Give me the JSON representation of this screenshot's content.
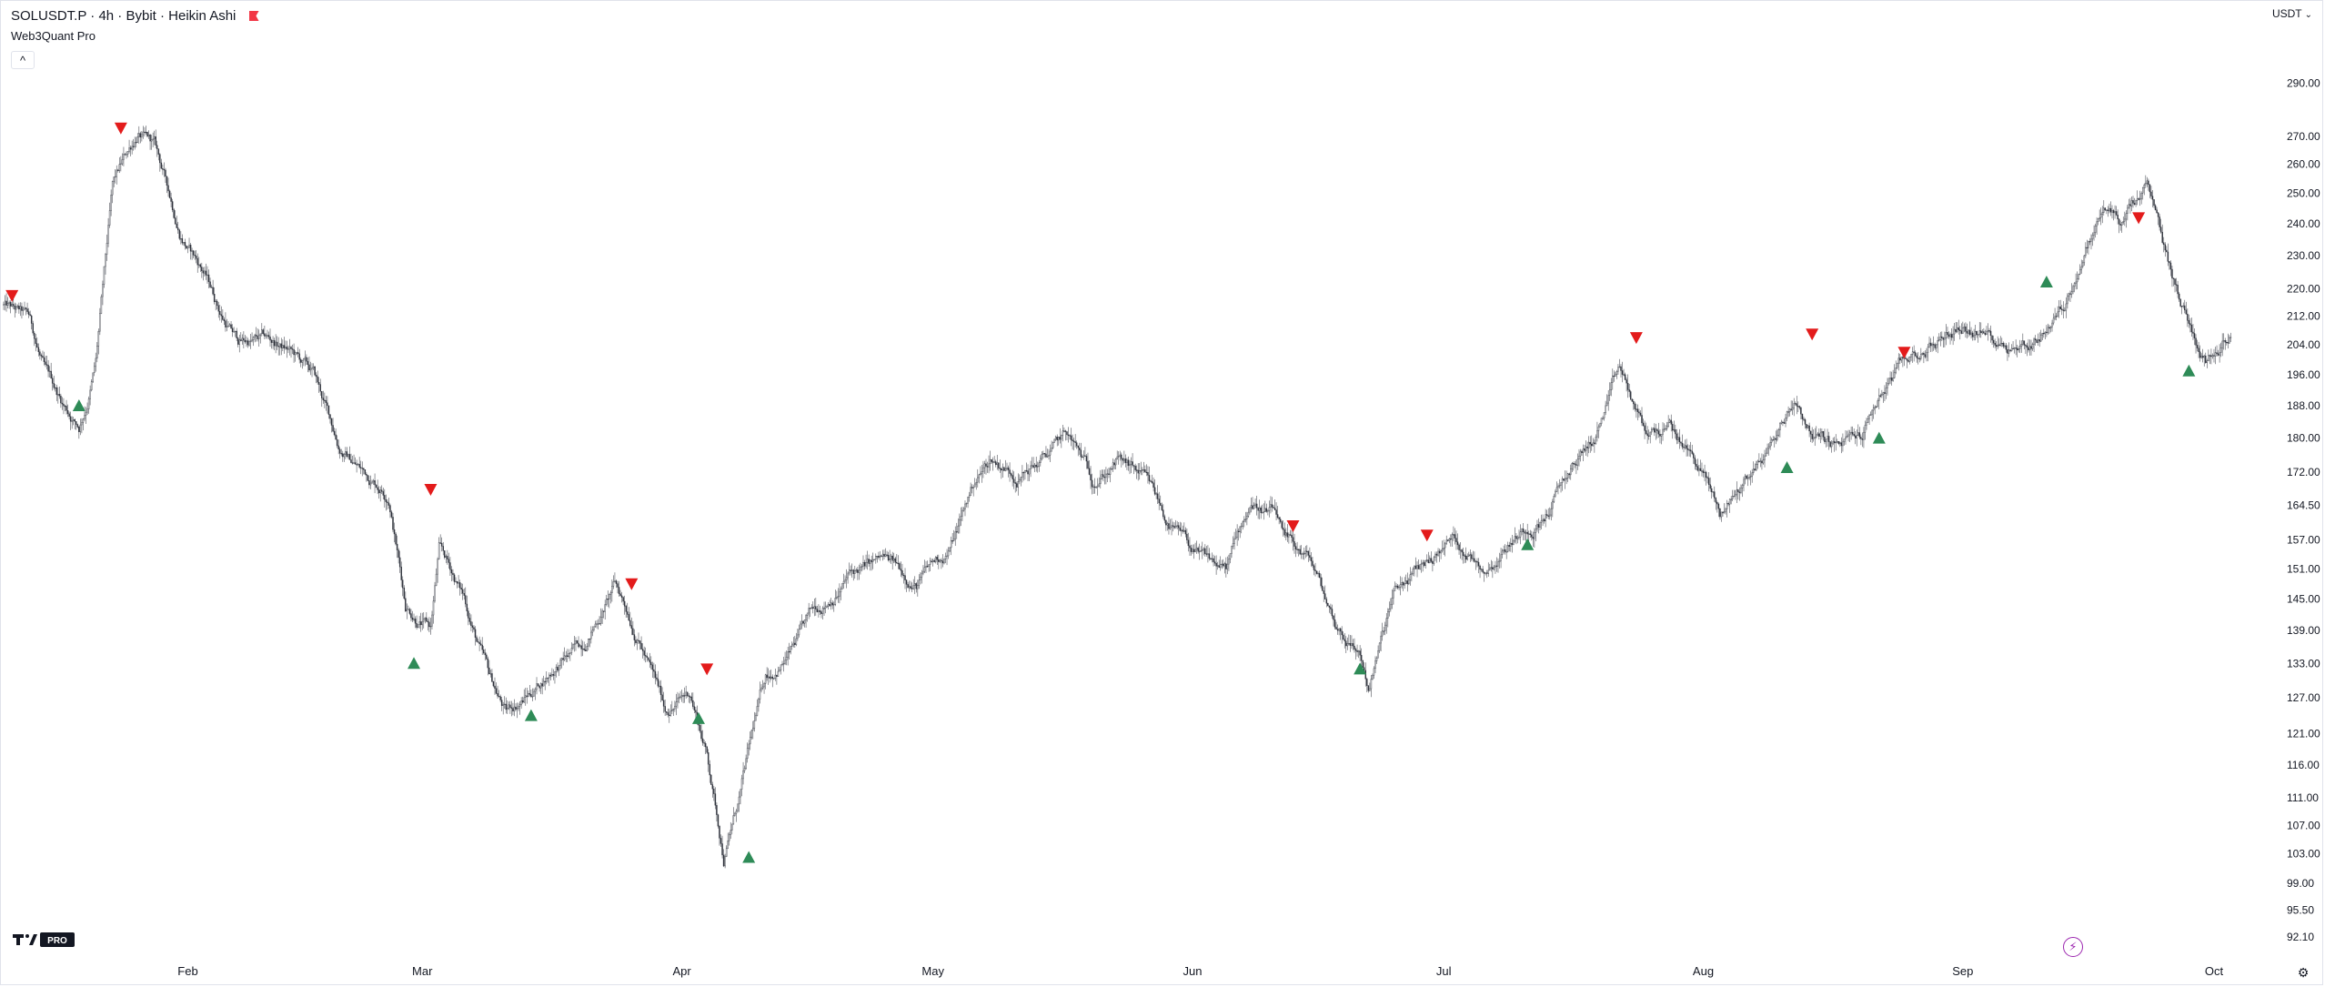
{
  "header": {
    "symbol": "SOLUSDT.P",
    "interval": "4h",
    "exchange": "Bybit",
    "chart_style": "Heikin Ashi",
    "separator": "·",
    "indicator": "Web3Quant Pro",
    "collapse_glyph": "^",
    "currency": "USDT",
    "currency_chevron": "⌄",
    "bolt_glyph": "⚡",
    "gear_glyph": "⚙"
  },
  "colors": {
    "candles": "#131722",
    "buy_signal": "#2e8b57",
    "sell_signal": "#e31b1b",
    "axis_text": "#131722",
    "border": "#e0e3eb",
    "accent_bolt": "#9c27b0"
  },
  "chart_data": {
    "type": "line",
    "scale": "log",
    "grid": false,
    "title": "",
    "xlabel": "",
    "ylabel": "",
    "x_range": [
      "2025-01-10",
      "2025-10-06"
    ],
    "y_range": [
      92.1,
      305
    ],
    "x_ticks": [
      {
        "date": "2025-02-01",
        "label": "Feb"
      },
      {
        "date": "2025-03-01",
        "label": "Mar"
      },
      {
        "date": "2025-04-01",
        "label": "Apr"
      },
      {
        "date": "2025-05-01",
        "label": "May"
      },
      {
        "date": "2025-06-01",
        "label": "Jun"
      },
      {
        "date": "2025-07-01",
        "label": "Jul"
      },
      {
        "date": "2025-08-01",
        "label": "Aug"
      },
      {
        "date": "2025-09-01",
        "label": "Sep"
      },
      {
        "date": "2025-10-01",
        "label": "Oct"
      }
    ],
    "y_ticks": [
      {
        "value": 290,
        "label": "290.00"
      },
      {
        "value": 270,
        "label": "270.00"
      },
      {
        "value": 260,
        "label": "260.00"
      },
      {
        "value": 250,
        "label": "250.00"
      },
      {
        "value": 240,
        "label": "240.00"
      },
      {
        "value": 230,
        "label": "230.00"
      },
      {
        "value": 220,
        "label": "220.00"
      },
      {
        "value": 212,
        "label": "212.00"
      },
      {
        "value": 204,
        "label": "204.00"
      },
      {
        "value": 196,
        "label": "196.00"
      },
      {
        "value": 188,
        "label": "188.00"
      },
      {
        "value": 180,
        "label": "180.00"
      },
      {
        "value": 172,
        "label": "172.00"
      },
      {
        "value": 164.5,
        "label": "164.50"
      },
      {
        "value": 157,
        "label": "157.00"
      },
      {
        "value": 151,
        "label": "151.00"
      },
      {
        "value": 145,
        "label": "145.00"
      },
      {
        "value": 139,
        "label": "139.00"
      },
      {
        "value": 133,
        "label": "133.00"
      },
      {
        "value": 127,
        "label": "127.00"
      },
      {
        "value": 121,
        "label": "121.00"
      },
      {
        "value": 116,
        "label": "116.00"
      },
      {
        "value": 111,
        "label": "111.00"
      },
      {
        "value": 107,
        "label": "107.00"
      },
      {
        "value": 103,
        "label": "103.00"
      },
      {
        "value": 99,
        "label": "99.00"
      },
      {
        "value": 95.5,
        "label": "95.50"
      },
      {
        "value": 92.1,
        "label": "92.10"
      }
    ],
    "series": [
      {
        "name": "",
        "x": [
          "2025-01-10",
          "2025-01-13",
          "2025-01-15",
          "2025-01-17",
          "2025-01-19",
          "2025-01-20",
          "2025-01-21",
          "2025-01-23",
          "2025-01-26",
          "2025-01-28",
          "2025-01-31",
          "2025-02-03",
          "2025-02-05",
          "2025-02-07",
          "2025-02-10",
          "2025-02-13",
          "2025-02-16",
          "2025-02-19",
          "2025-02-22",
          "2025-02-25",
          "2025-02-27",
          "2025-03-02",
          "2025-03-03",
          "2025-03-06",
          "2025-03-09",
          "2025-03-11",
          "2025-03-14",
          "2025-03-17",
          "2025-03-20",
          "2025-03-24",
          "2025-03-27",
          "2025-03-30",
          "2025-04-02",
          "2025-04-04",
          "2025-04-06",
          "2025-04-08",
          "2025-04-09",
          "2025-04-11",
          "2025-04-14",
          "2025-04-17",
          "2025-04-21",
          "2025-04-25",
          "2025-04-29",
          "2025-05-03",
          "2025-05-06",
          "2025-05-08",
          "2025-05-11",
          "2025-05-14",
          "2025-05-17",
          "2025-05-20",
          "2025-05-23",
          "2025-05-26",
          "2025-05-29",
          "2025-06-02",
          "2025-06-05",
          "2025-06-08",
          "2025-06-11",
          "2025-06-12",
          "2025-06-15",
          "2025-06-18",
          "2025-06-21",
          "2025-06-22",
          "2025-06-25",
          "2025-06-29",
          "2025-07-02",
          "2025-07-06",
          "2025-07-09",
          "2025-07-13",
          "2025-07-16",
          "2025-07-19",
          "2025-07-22",
          "2025-07-25",
          "2025-07-28",
          "2025-08-01",
          "2025-08-03",
          "2025-08-06",
          "2025-08-09",
          "2025-08-12",
          "2025-08-14",
          "2025-08-17",
          "2025-08-20",
          "2025-08-22",
          "2025-08-24",
          "2025-08-26",
          "2025-08-29",
          "2025-09-01",
          "2025-09-05",
          "2025-09-09",
          "2025-09-13",
          "2025-09-16",
          "2025-09-18",
          "2025-09-20",
          "2025-09-23",
          "2025-09-25",
          "2025-09-27",
          "2025-09-30",
          "2025-10-03"
        ],
        "y": [
          215,
          210,
          195,
          188,
          183,
          190,
          200,
          250,
          270,
          265,
          238,
          225,
          213,
          205,
          205,
          202,
          195,
          178,
          172,
          168,
          145,
          140,
          155,
          145,
          130,
          124,
          128,
          133,
          136,
          148,
          138,
          125,
          128,
          118,
          103,
          112,
          118,
          130,
          135,
          142,
          150,
          152,
          148,
          155,
          170,
          175,
          172,
          175,
          180,
          170,
          175,
          170,
          160,
          152,
          150,
          165,
          162,
          155,
          152,
          140,
          135,
          129,
          145,
          152,
          157,
          152,
          158,
          163,
          172,
          180,
          196,
          180,
          182,
          172,
          162,
          170,
          178,
          190,
          182,
          178,
          180,
          190,
          196,
          200,
          205,
          210,
          206,
          205,
          215,
          235,
          245,
          240,
          250,
          230,
          215,
          200,
          210
        ]
      }
    ],
    "signals_buy": {
      "x": [
        "2025-01-19",
        "2025-02-28",
        "2025-03-14",
        "2025-04-03",
        "2025-04-09",
        "2025-06-21",
        "2025-07-11",
        "2025-08-11",
        "2025-08-22",
        "2025-09-11",
        "2025-09-28"
      ],
      "y": [
        188,
        133,
        124,
        123.5,
        102.5,
        132,
        156,
        173,
        180,
        222,
        197
      ]
    },
    "signals_sell": {
      "x": [
        "2025-01-11",
        "2025-01-24",
        "2025-03-02",
        "2025-03-26",
        "2025-04-04",
        "2025-06-13",
        "2025-06-29",
        "2025-07-24",
        "2025-08-14",
        "2025-08-25",
        "2025-09-22"
      ],
      "y": [
        218,
        273,
        168,
        148,
        132,
        160,
        158,
        206,
        207,
        202,
        242
      ]
    }
  }
}
